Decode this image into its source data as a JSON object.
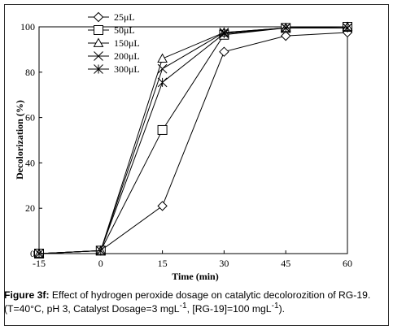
{
  "chart_data": {
    "type": "line",
    "x": [
      -15,
      0,
      15,
      30,
      45,
      60
    ],
    "xticks": [
      "-15",
      "0",
      "15",
      "30",
      "45",
      "60"
    ],
    "yticks": [
      "0",
      "20",
      "40",
      "60",
      "80",
      "100"
    ],
    "xlabel": "Time (min)",
    "ylabel": "Decolorization (%)",
    "xlim": [
      -15,
      60
    ],
    "ylim": [
      0,
      100
    ],
    "legend_position": "top-left",
    "grid": false,
    "series": [
      {
        "name": "25μL",
        "marker": "diamond",
        "values": [
          0,
          1.3,
          21,
          89,
          96,
          97.5
        ]
      },
      {
        "name": "50μL",
        "marker": "square",
        "values": [
          0,
          1.3,
          54.5,
          96.5,
          99.5,
          100
        ]
      },
      {
        "name": "150μL",
        "marker": "triangle",
        "values": [
          0,
          1.3,
          86,
          97.5,
          99.5,
          100
        ]
      },
      {
        "name": "200μL",
        "marker": "x",
        "values": [
          0,
          1.3,
          81.5,
          97.5,
          99.5,
          99.5
        ]
      },
      {
        "name": "300μL",
        "marker": "star",
        "values": [
          0,
          1.3,
          75.5,
          97,
          99.5,
          99.5
        ]
      }
    ]
  },
  "caption": {
    "label": "Figure 3f:",
    "text_1": " Effect of hydrogen peroxide dosage on catalytic decolorozition of RG-19. (T=40°C, pH 3, Catalyst Dosage=3 mgL",
    "sup_1": "-1",
    "text_2": ", [RG-19]=100 mgL",
    "sup_2": "-1",
    "text_3": ")."
  }
}
